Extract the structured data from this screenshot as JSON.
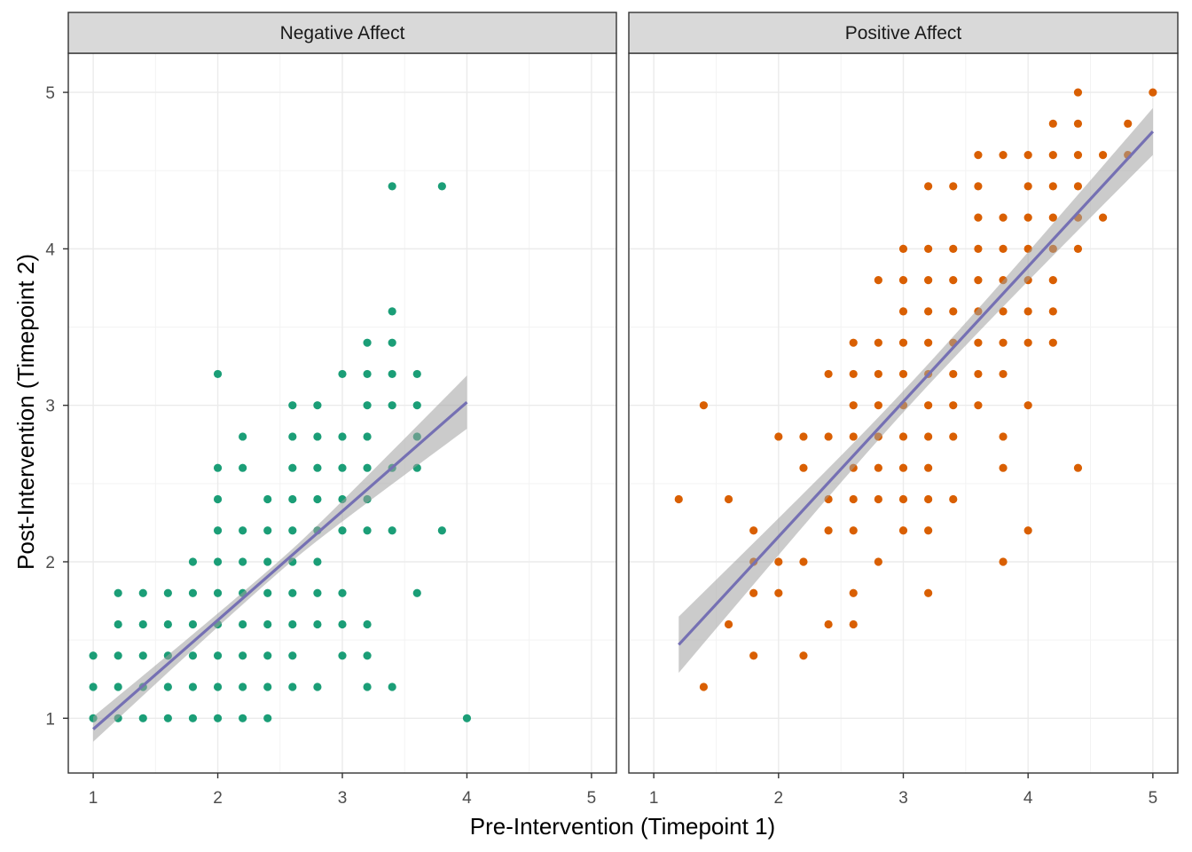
{
  "chart_data": {
    "type": "scatter",
    "xlabel": "Pre-Intervention (Timepoint 1)",
    "ylabel": "Post-Intervention (Timepoint 2)",
    "xlim": [
      0.8,
      5.2
    ],
    "ylim": [
      0.65,
      5.25
    ],
    "x_ticks": [
      1,
      2,
      3,
      4,
      5
    ],
    "y_ticks": [
      1,
      2,
      3,
      4,
      5
    ],
    "grid": true,
    "legend": "none",
    "colors": {
      "strip_fill": "#d9d9d9",
      "grid_major": "#ebebeb",
      "grid_minor": "#f3f3f3",
      "panel_border": "#333333",
      "fit_line": "#7570b3",
      "ribbon": "#a0a0a0"
    },
    "panels": [
      {
        "label": "Negative Affect",
        "color": "#1b9e77",
        "fit": {
          "x": [
            1.0,
            4.0
          ],
          "y": [
            0.93,
            3.02
          ],
          "se_halfwidth": [
            0.08,
            0.17
          ]
        },
        "points": [
          [
            1.0,
            1.0
          ],
          [
            1.0,
            1.2
          ],
          [
            1.0,
            1.4
          ],
          [
            1.2,
            1.0
          ],
          [
            1.2,
            1.2
          ],
          [
            1.2,
            1.4
          ],
          [
            1.2,
            1.6
          ],
          [
            1.2,
            1.8
          ],
          [
            1.4,
            1.0
          ],
          [
            1.4,
            1.2
          ],
          [
            1.4,
            1.4
          ],
          [
            1.4,
            1.6
          ],
          [
            1.4,
            1.8
          ],
          [
            1.6,
            1.0
          ],
          [
            1.6,
            1.2
          ],
          [
            1.6,
            1.4
          ],
          [
            1.6,
            1.6
          ],
          [
            1.6,
            1.8
          ],
          [
            1.8,
            1.0
          ],
          [
            1.8,
            1.2
          ],
          [
            1.8,
            1.4
          ],
          [
            1.8,
            1.6
          ],
          [
            1.8,
            1.8
          ],
          [
            1.8,
            2.0
          ],
          [
            2.0,
            1.0
          ],
          [
            2.0,
            1.2
          ],
          [
            2.0,
            1.4
          ],
          [
            2.0,
            1.6
          ],
          [
            2.0,
            1.8
          ],
          [
            2.0,
            2.0
          ],
          [
            2.0,
            2.2
          ],
          [
            2.0,
            2.4
          ],
          [
            2.0,
            2.6
          ],
          [
            2.0,
            3.2
          ],
          [
            2.2,
            1.0
          ],
          [
            2.2,
            1.2
          ],
          [
            2.2,
            1.4
          ],
          [
            2.2,
            1.6
          ],
          [
            2.2,
            1.8
          ],
          [
            2.2,
            2.0
          ],
          [
            2.2,
            2.2
          ],
          [
            2.2,
            2.6
          ],
          [
            2.2,
            2.8
          ],
          [
            2.4,
            1.0
          ],
          [
            2.4,
            1.2
          ],
          [
            2.4,
            1.4
          ],
          [
            2.4,
            1.6
          ],
          [
            2.4,
            1.8
          ],
          [
            2.4,
            2.0
          ],
          [
            2.4,
            2.2
          ],
          [
            2.4,
            2.4
          ],
          [
            2.6,
            1.2
          ],
          [
            2.6,
            1.4
          ],
          [
            2.6,
            1.6
          ],
          [
            2.6,
            1.8
          ],
          [
            2.6,
            2.0
          ],
          [
            2.6,
            2.2
          ],
          [
            2.6,
            2.4
          ],
          [
            2.6,
            2.6
          ],
          [
            2.6,
            2.8
          ],
          [
            2.6,
            3.0
          ],
          [
            2.8,
            1.2
          ],
          [
            2.8,
            1.6
          ],
          [
            2.8,
            1.8
          ],
          [
            2.8,
            2.0
          ],
          [
            2.8,
            2.2
          ],
          [
            2.8,
            2.4
          ],
          [
            2.8,
            2.6
          ],
          [
            2.8,
            2.8
          ],
          [
            2.8,
            3.0
          ],
          [
            3.0,
            1.4
          ],
          [
            3.0,
            1.6
          ],
          [
            3.0,
            1.8
          ],
          [
            3.0,
            2.2
          ],
          [
            3.0,
            2.4
          ],
          [
            3.0,
            2.6
          ],
          [
            3.0,
            2.8
          ],
          [
            3.0,
            3.2
          ],
          [
            3.2,
            1.2
          ],
          [
            3.2,
            1.4
          ],
          [
            3.2,
            1.6
          ],
          [
            3.2,
            2.2
          ],
          [
            3.2,
            2.4
          ],
          [
            3.2,
            2.6
          ],
          [
            3.2,
            2.8
          ],
          [
            3.2,
            3.0
          ],
          [
            3.2,
            3.2
          ],
          [
            3.2,
            3.4
          ],
          [
            3.4,
            1.2
          ],
          [
            3.4,
            2.2
          ],
          [
            3.4,
            2.6
          ],
          [
            3.4,
            3.0
          ],
          [
            3.4,
            3.2
          ],
          [
            3.4,
            3.4
          ],
          [
            3.4,
            3.6
          ],
          [
            3.4,
            4.4
          ],
          [
            3.6,
            1.8
          ],
          [
            3.6,
            2.6
          ],
          [
            3.6,
            2.8
          ],
          [
            3.6,
            3.0
          ],
          [
            3.6,
            3.2
          ],
          [
            3.8,
            2.2
          ],
          [
            3.8,
            4.4
          ],
          [
            4.0,
            1.0
          ]
        ]
      },
      {
        "label": "Positive Affect",
        "color": "#d95f02",
        "fit": {
          "x": [
            1.2,
            5.0
          ],
          "y": [
            1.47,
            4.75
          ],
          "se_halfwidth": [
            0.18,
            0.15
          ]
        },
        "points": [
          [
            1.2,
            2.4
          ],
          [
            1.4,
            1.2
          ],
          [
            1.4,
            3.0
          ],
          [
            1.6,
            1.6
          ],
          [
            1.6,
            2.4
          ],
          [
            1.8,
            1.4
          ],
          [
            1.8,
            1.8
          ],
          [
            1.8,
            2.0
          ],
          [
            1.8,
            2.2
          ],
          [
            2.0,
            1.8
          ],
          [
            2.0,
            2.0
          ],
          [
            2.0,
            2.8
          ],
          [
            2.2,
            1.4
          ],
          [
            2.2,
            2.0
          ],
          [
            2.2,
            2.6
          ],
          [
            2.2,
            2.8
          ],
          [
            2.4,
            1.6
          ],
          [
            2.4,
            2.2
          ],
          [
            2.4,
            2.4
          ],
          [
            2.4,
            2.8
          ],
          [
            2.4,
            3.2
          ],
          [
            2.6,
            1.6
          ],
          [
            2.6,
            1.8
          ],
          [
            2.6,
            2.2
          ],
          [
            2.6,
            2.4
          ],
          [
            2.6,
            2.6
          ],
          [
            2.6,
            2.8
          ],
          [
            2.6,
            3.0
          ],
          [
            2.6,
            3.2
          ],
          [
            2.6,
            3.4
          ],
          [
            2.8,
            2.0
          ],
          [
            2.8,
            2.4
          ],
          [
            2.8,
            2.6
          ],
          [
            2.8,
            2.8
          ],
          [
            2.8,
            3.0
          ],
          [
            2.8,
            3.2
          ],
          [
            2.8,
            3.4
          ],
          [
            2.8,
            3.8
          ],
          [
            3.0,
            2.2
          ],
          [
            3.0,
            2.4
          ],
          [
            3.0,
            2.6
          ],
          [
            3.0,
            2.8
          ],
          [
            3.0,
            3.0
          ],
          [
            3.0,
            3.2
          ],
          [
            3.0,
            3.4
          ],
          [
            3.0,
            3.6
          ],
          [
            3.0,
            3.8
          ],
          [
            3.0,
            4.0
          ],
          [
            3.2,
            1.8
          ],
          [
            3.2,
            2.2
          ],
          [
            3.2,
            2.4
          ],
          [
            3.2,
            2.6
          ],
          [
            3.2,
            2.8
          ],
          [
            3.2,
            3.0
          ],
          [
            3.2,
            3.2
          ],
          [
            3.2,
            3.4
          ],
          [
            3.2,
            3.6
          ],
          [
            3.2,
            3.8
          ],
          [
            3.2,
            4.0
          ],
          [
            3.2,
            4.4
          ],
          [
            3.4,
            2.4
          ],
          [
            3.4,
            2.8
          ],
          [
            3.4,
            3.0
          ],
          [
            3.4,
            3.2
          ],
          [
            3.4,
            3.4
          ],
          [
            3.4,
            3.6
          ],
          [
            3.4,
            3.8
          ],
          [
            3.4,
            4.0
          ],
          [
            3.4,
            4.4
          ],
          [
            3.6,
            3.0
          ],
          [
            3.6,
            3.2
          ],
          [
            3.6,
            3.4
          ],
          [
            3.6,
            3.6
          ],
          [
            3.6,
            3.8
          ],
          [
            3.6,
            4.0
          ],
          [
            3.6,
            4.2
          ],
          [
            3.6,
            4.4
          ],
          [
            3.6,
            4.6
          ],
          [
            3.8,
            2.0
          ],
          [
            3.8,
            2.6
          ],
          [
            3.8,
            2.8
          ],
          [
            3.8,
            3.2
          ],
          [
            3.8,
            3.4
          ],
          [
            3.8,
            3.6
          ],
          [
            3.8,
            3.8
          ],
          [
            3.8,
            4.0
          ],
          [
            3.8,
            4.2
          ],
          [
            3.8,
            4.6
          ],
          [
            4.0,
            2.2
          ],
          [
            4.0,
            3.0
          ],
          [
            4.0,
            3.4
          ],
          [
            4.0,
            3.6
          ],
          [
            4.0,
            3.8
          ],
          [
            4.0,
            4.0
          ],
          [
            4.0,
            4.2
          ],
          [
            4.0,
            4.4
          ],
          [
            4.0,
            4.6
          ],
          [
            4.2,
            3.4
          ],
          [
            4.2,
            3.6
          ],
          [
            4.2,
            3.8
          ],
          [
            4.2,
            4.0
          ],
          [
            4.2,
            4.2
          ],
          [
            4.2,
            4.4
          ],
          [
            4.2,
            4.6
          ],
          [
            4.2,
            4.8
          ],
          [
            4.4,
            2.6
          ],
          [
            4.4,
            4.0
          ],
          [
            4.4,
            4.2
          ],
          [
            4.4,
            4.4
          ],
          [
            4.4,
            4.6
          ],
          [
            4.4,
            4.8
          ],
          [
            4.4,
            5.0
          ],
          [
            4.6,
            4.2
          ],
          [
            4.6,
            4.6
          ],
          [
            4.8,
            4.6
          ],
          [
            4.8,
            4.8
          ],
          [
            5.0,
            5.0
          ]
        ]
      }
    ]
  }
}
